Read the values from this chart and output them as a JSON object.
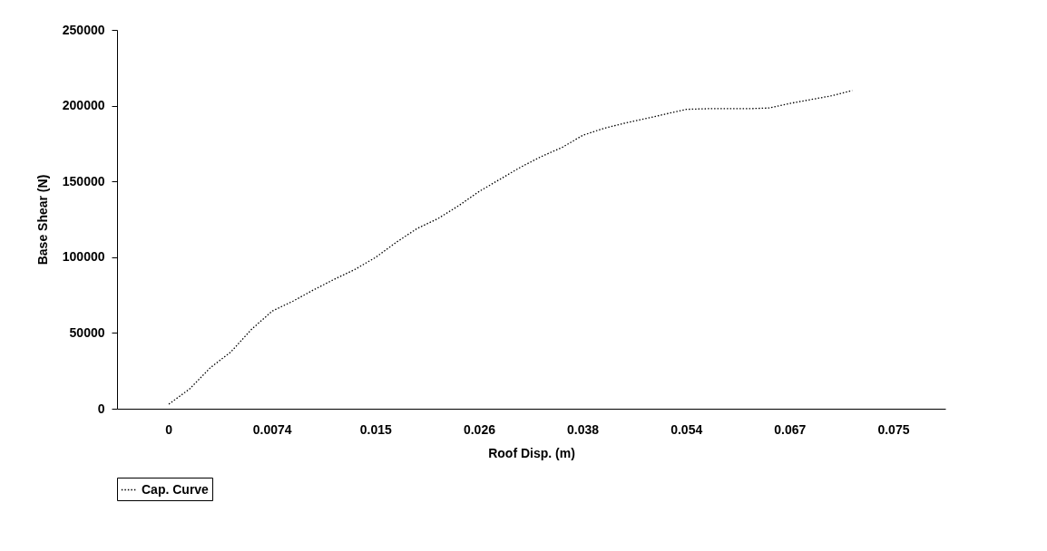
{
  "chart_data": {
    "type": "line",
    "xlabel": "Roof Disp. (m)",
    "ylabel": "Base Shear (N)",
    "categories": [
      null,
      null,
      "0",
      null,
      null,
      null,
      null,
      "0.0074",
      null,
      null,
      null,
      null,
      "0.015",
      null,
      null,
      null,
      null,
      "0.026",
      null,
      null,
      null,
      null,
      "0.038",
      null,
      null,
      null,
      null,
      "0.054",
      null,
      null,
      null,
      null,
      "0.067",
      null,
      null,
      null,
      null,
      "0.075",
      null,
      null
    ],
    "series": [
      {
        "name": "Cap. Curve",
        "color": "#000000",
        "values": [
          null,
          null,
          3000,
          13000,
          27000,
          37500,
          52500,
          64500,
          71000,
          78500,
          85500,
          92000,
          100000,
          110000,
          119000,
          125500,
          134000,
          143500,
          151500,
          159500,
          166500,
          172500,
          180500,
          185000,
          188400,
          191400,
          194500,
          197600,
          198000,
          198000,
          198000,
          198500,
          201500,
          204000,
          206500,
          210000,
          null,
          null,
          null,
          null
        ]
      }
    ],
    "ylim": [
      0,
      250000
    ],
    "yticks": [
      0,
      50000,
      100000,
      150000,
      200000,
      250000
    ],
    "grid": false,
    "legend": "bottom",
    "marker": "none",
    "line_style": "dotted"
  }
}
